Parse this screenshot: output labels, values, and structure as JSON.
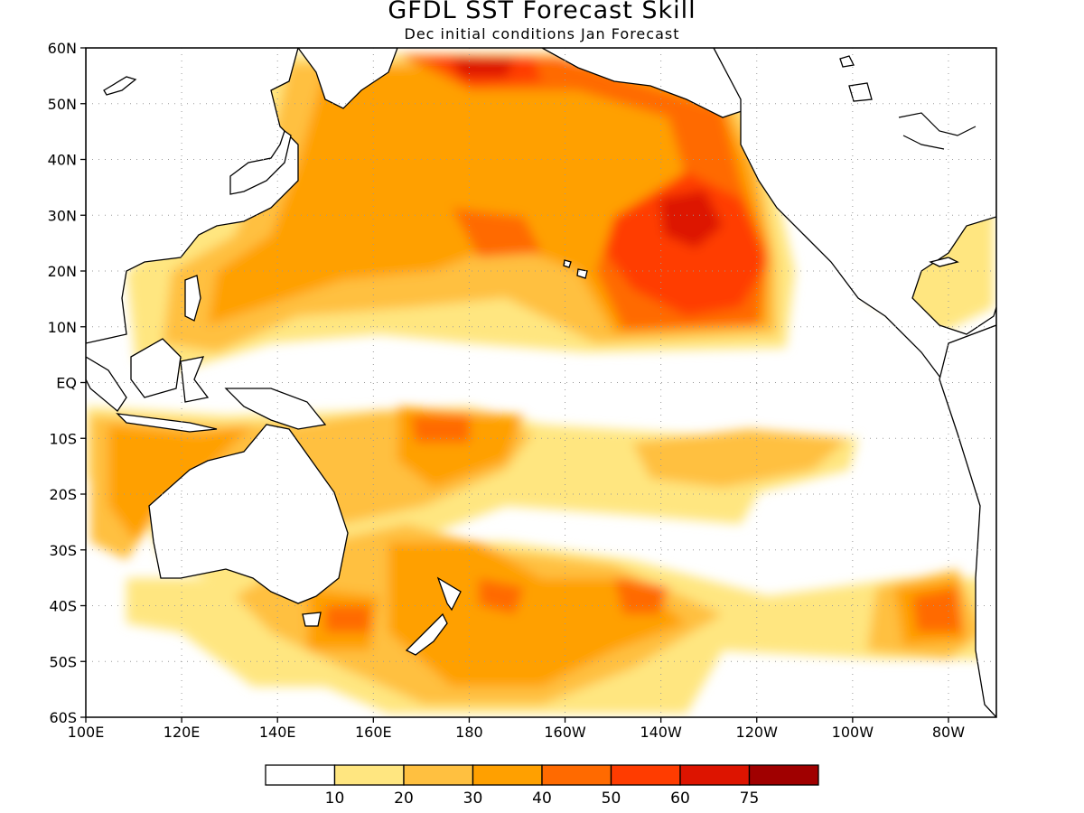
{
  "title": "GFDL SST Forecast Skill",
  "subtitle": "Dec initial conditions  Jan Forecast",
  "lat_labels": [
    "60N",
    "50N",
    "40N",
    "30N",
    "20N",
    "10N",
    "EQ",
    "10S",
    "20S",
    "30S",
    "40S",
    "50S",
    "60S"
  ],
  "lon_labels": [
    "100E",
    "120E",
    "140E",
    "160E",
    "180",
    "160W",
    "140W",
    "120W",
    "100W",
    "80W"
  ],
  "colorbar": {
    "labels": [
      "10",
      "20",
      "30",
      "40",
      "50",
      "60",
      "75"
    ],
    "colors": [
      "#ffffff",
      "#ffe680",
      "#ffc040",
      "#ffa000",
      "#ff6a00",
      "#ff3c00",
      "#dd1400",
      "#a00000"
    ]
  }
}
